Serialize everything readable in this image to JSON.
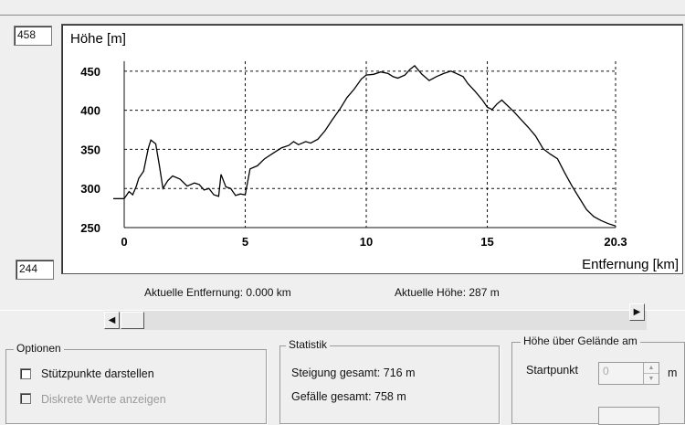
{
  "chart_data": {
    "type": "line",
    "ylabel": "Höhe [m]",
    "xlabel": "Entfernung [km]",
    "xlim": [
      0,
      20.3
    ],
    "ylim": [
      250,
      458
    ],
    "x_ticks": [
      "0",
      "5",
      "10",
      "15",
      "20.3"
    ],
    "y_ticks": [
      "250",
      "300",
      "350",
      "400",
      "450"
    ],
    "x_tick_values": [
      0,
      5,
      10,
      15,
      20.3
    ],
    "y_tick_values": [
      250,
      300,
      350,
      400,
      450
    ],
    "grid": true,
    "series": [
      {
        "x": [
          0,
          0.2,
          0.35,
          0.5,
          0.6,
          0.8,
          1.0,
          1.1,
          1.3,
          1.45,
          1.6,
          1.8,
          2.0,
          2.3,
          2.6,
          2.9,
          3.1,
          3.3,
          3.5,
          3.7,
          3.9,
          4.0,
          4.2,
          4.4,
          4.6,
          4.8,
          5.0,
          5.2,
          5.5,
          5.8,
          6.2,
          6.5,
          6.8,
          7.0,
          7.2,
          7.5,
          7.7,
          8.0,
          8.3,
          8.6,
          8.9,
          9.2,
          9.5,
          9.8,
          10.0,
          10.3,
          10.6,
          10.9,
          11.1,
          11.3,
          11.6,
          11.8,
          12.0,
          12.3,
          12.6,
          12.9,
          13.2,
          13.5,
          13.8,
          14.0,
          14.2,
          14.5,
          14.8,
          15.0,
          15.2,
          15.4,
          15.6,
          15.8,
          16.1,
          16.4,
          16.7,
          17.0,
          17.3,
          17.6,
          17.9,
          18.2,
          18.5,
          18.8,
          19.1,
          19.4,
          19.7,
          20.0,
          20.3
        ],
        "y": [
          287,
          296,
          292,
          303,
          313,
          322,
          352,
          362,
          357,
          330,
          300,
          310,
          316,
          312,
          303,
          307,
          305,
          298,
          300,
          292,
          290,
          318,
          302,
          300,
          291,
          293,
          292,
          325,
          329,
          338,
          346,
          352,
          355,
          360,
          356,
          360,
          358,
          363,
          374,
          388,
          401,
          416,
          427,
          440,
          445,
          446,
          449,
          447,
          443,
          441,
          445,
          452,
          457,
          446,
          438,
          443,
          447,
          450,
          446,
          443,
          434,
          424,
          413,
          404,
          401,
          408,
          413,
          407,
          398,
          388,
          378,
          367,
          351,
          344,
          338,
          320,
          303,
          288,
          273,
          264,
          259,
          255,
          252
        ]
      }
    ]
  },
  "top_value": "458",
  "bottom_value": "244",
  "status": {
    "distance": "Aktuelle Entfernung: 0.000 km",
    "height": "Aktuelle Höhe: 287 m"
  },
  "optionen": {
    "title": "Optionen",
    "stuetzpunkte": "Stützpunkte darstellen",
    "diskrete": "Diskrete Werte anzeigen"
  },
  "statistik": {
    "title": "Statistik",
    "steigung": "Steigung gesamt: 716 m",
    "gefaelle": "Gefälle gesamt: 758 m"
  },
  "hoehe": {
    "title": "Höhe über Gelände am",
    "startpunkt_label": "Startpunkt",
    "startpunkt_value": "0",
    "unit": "m"
  }
}
